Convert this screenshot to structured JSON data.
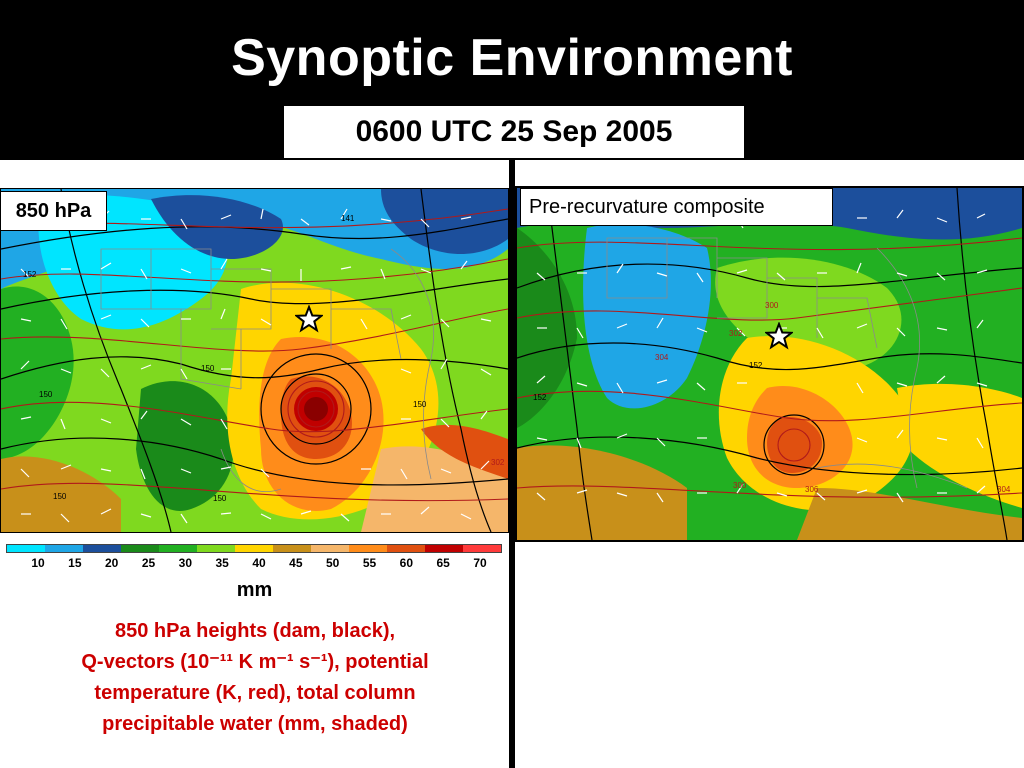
{
  "slide": {
    "title": "Synoptic Environment",
    "time": "0600 UTC 25 Sep 2005"
  },
  "left_panel": {
    "level_label": "850 hPa",
    "contour_labels": [
      "141",
      "152",
      "150",
      "150",
      "150",
      "150",
      "302",
      "150"
    ]
  },
  "right_panel": {
    "label": "Pre-recurvature composite",
    "contour_labels": [
      "152",
      "152",
      "304",
      "302",
      "300",
      "300",
      "306",
      "304"
    ]
  },
  "colorbar": {
    "ticks": [
      "10",
      "15",
      "20",
      "25",
      "30",
      "35",
      "40",
      "45",
      "50",
      "55",
      "60",
      "65",
      "70"
    ],
    "colors": [
      "#00e5ff",
      "#1fa6e6",
      "#1c4f9c",
      "#1a8a1a",
      "#22b022",
      "#7fd91f",
      "#ffd500",
      "#c8901a",
      "#f5b66a",
      "#ff8c1a",
      "#e05010",
      "#c00000",
      "#ff3b3b"
    ],
    "units": "mm"
  },
  "caption": {
    "line1": "850 hPa heights (dam, black),",
    "line2": "Q-vectors (10⁻¹¹ K m⁻¹ s⁻¹), potential",
    "line3": "temperature (K, red), total column",
    "line4": "precipitable water (mm, shaded)"
  },
  "icons": {
    "location_marker": "star-icon"
  }
}
